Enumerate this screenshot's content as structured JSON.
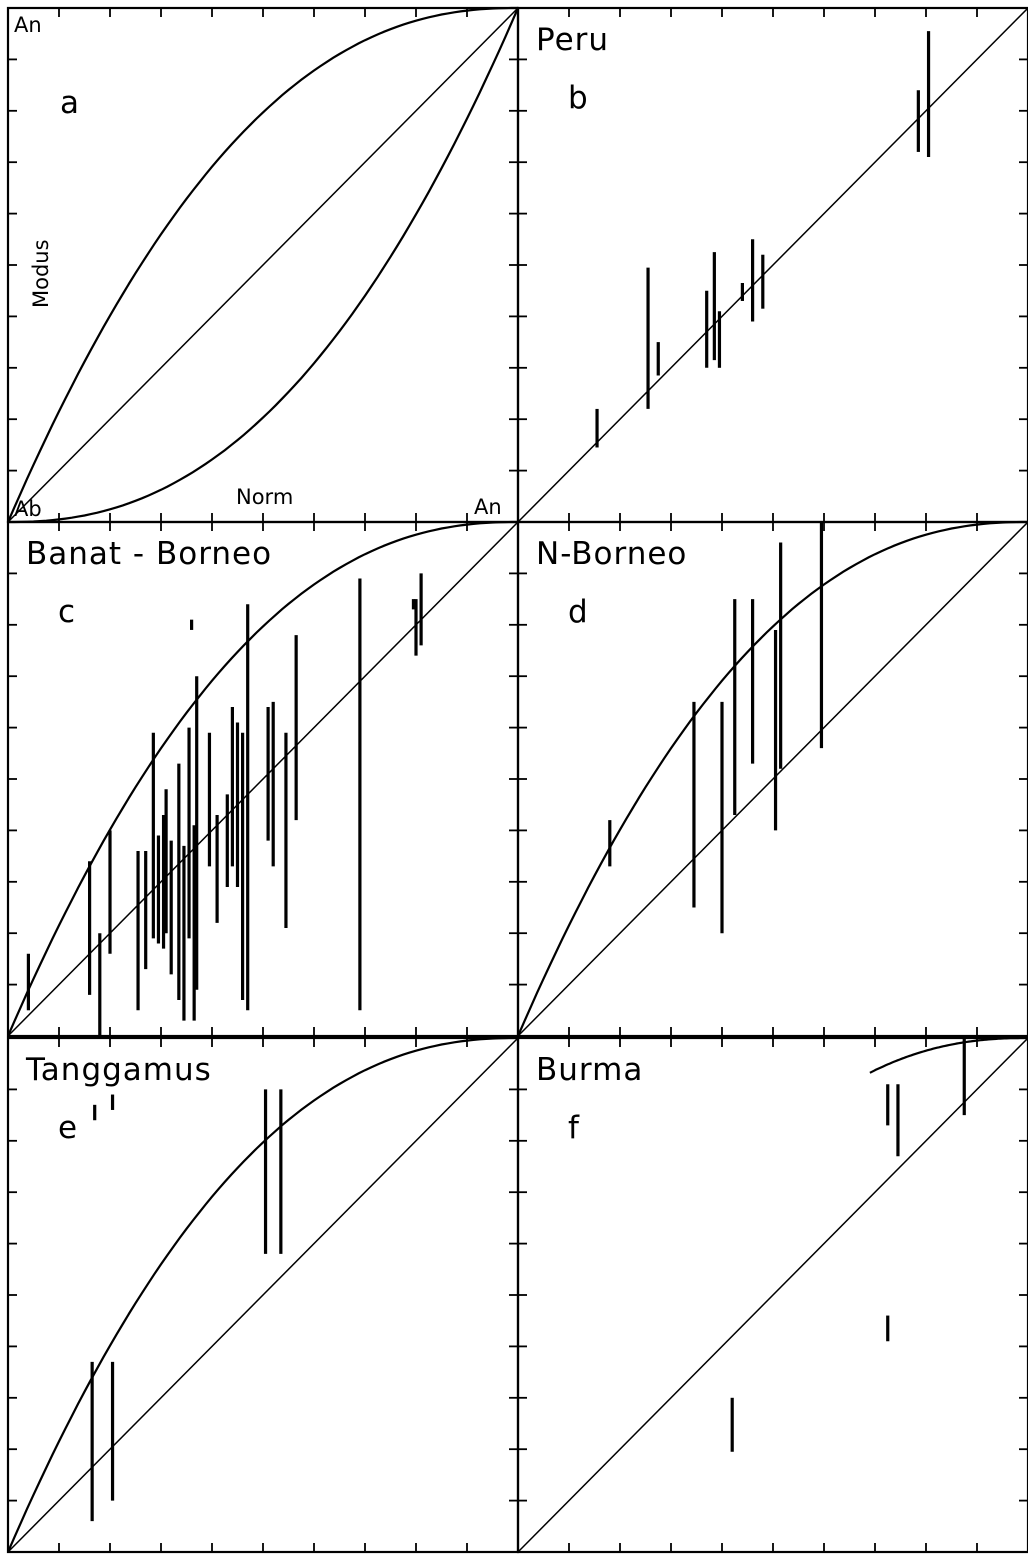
{
  "chart_data": [
    {
      "panel": "a",
      "type": "line",
      "title": "",
      "letter": "a",
      "xlabel": "Norm",
      "ylabel": "Modus",
      "x_start_label": "Ab",
      "x_end_label": "An",
      "y_end_label": "An",
      "xlim": [
        0,
        1
      ],
      "ylim": [
        0,
        1
      ],
      "diagonal": true,
      "upper_curve": true,
      "lower_curve": true,
      "bars": []
    },
    {
      "panel": "b",
      "type": "bar",
      "title": "Peru",
      "letter": "b",
      "xlim": [
        0,
        1
      ],
      "ylim": [
        0,
        1
      ],
      "diagonal": true,
      "upper_curve": false,
      "lower_curve": false,
      "bars": [
        {
          "x": 0.155,
          "y1": 0.145,
          "y2": 0.22
        },
        {
          "x": 0.255,
          "y1": 0.22,
          "y2": 0.495
        },
        {
          "x": 0.275,
          "y1": 0.285,
          "y2": 0.35
        },
        {
          "x": 0.37,
          "y1": 0.3,
          "y2": 0.45
        },
        {
          "x": 0.385,
          "y1": 0.315,
          "y2": 0.525
        },
        {
          "x": 0.395,
          "y1": 0.3,
          "y2": 0.41
        },
        {
          "x": 0.44,
          "y1": 0.43,
          "y2": 0.465
        },
        {
          "x": 0.46,
          "y1": 0.39,
          "y2": 0.55
        },
        {
          "x": 0.48,
          "y1": 0.415,
          "y2": 0.52
        },
        {
          "x": 0.785,
          "y1": 0.72,
          "y2": 0.84
        },
        {
          "x": 0.805,
          "y1": 0.71,
          "y2": 0.955
        }
      ]
    },
    {
      "panel": "c",
      "type": "bar",
      "title": "Banat - Borneo",
      "letter": "c",
      "xlim": [
        0,
        1
      ],
      "ylim": [
        0,
        1
      ],
      "diagonal": true,
      "upper_curve": true,
      "lower_curve": false,
      "bars": [
        {
          "x": 0.04,
          "y1": 0.05,
          "y2": 0.16
        },
        {
          "x": 0.16,
          "y1": 0.08,
          "y2": 0.34
        },
        {
          "x": 0.18,
          "y1": 0.0,
          "y2": 0.2
        },
        {
          "x": 0.2,
          "y1": 0.16,
          "y2": 0.4
        },
        {
          "x": 0.255,
          "y1": 0.05,
          "y2": 0.36
        },
        {
          "x": 0.27,
          "y1": 0.13,
          "y2": 0.36
        },
        {
          "x": 0.285,
          "y1": 0.19,
          "y2": 0.59
        },
        {
          "x": 0.295,
          "y1": 0.18,
          "y2": 0.39
        },
        {
          "x": 0.305,
          "y1": 0.17,
          "y2": 0.43
        },
        {
          "x": 0.31,
          "y1": 0.2,
          "y2": 0.48
        },
        {
          "x": 0.32,
          "y1": 0.12,
          "y2": 0.38
        },
        {
          "x": 0.335,
          "y1": 0.07,
          "y2": 0.53
        },
        {
          "x": 0.345,
          "y1": 0.03,
          "y2": 0.37
        },
        {
          "x": 0.355,
          "y1": 0.19,
          "y2": 0.6
        },
        {
          "x": 0.365,
          "y1": 0.03,
          "y2": 0.41
        },
        {
          "x": 0.37,
          "y1": 0.09,
          "y2": 0.7
        },
        {
          "x": 0.395,
          "y1": 0.33,
          "y2": 0.59
        },
        {
          "x": 0.41,
          "y1": 0.22,
          "y2": 0.43
        },
        {
          "x": 0.43,
          "y1": 0.29,
          "y2": 0.47
        },
        {
          "x": 0.44,
          "y1": 0.33,
          "y2": 0.64
        },
        {
          "x": 0.45,
          "y1": 0.29,
          "y2": 0.61
        },
        {
          "x": 0.46,
          "y1": 0.07,
          "y2": 0.59
        },
        {
          "x": 0.47,
          "y1": 0.05,
          "y2": 0.84
        },
        {
          "x": 0.51,
          "y1": 0.38,
          "y2": 0.64
        },
        {
          "x": 0.52,
          "y1": 0.33,
          "y2": 0.65
        },
        {
          "x": 0.545,
          "y1": 0.21,
          "y2": 0.59
        },
        {
          "x": 0.565,
          "y1": 0.42,
          "y2": 0.78
        },
        {
          "x": 0.69,
          "y1": 0.05,
          "y2": 0.89
        },
        {
          "x": 0.795,
          "y1": 0.83,
          "y2": 0.85
        },
        {
          "x": 0.8,
          "y1": 0.74,
          "y2": 0.85
        },
        {
          "x": 0.81,
          "y1": 0.76,
          "y2": 0.9
        },
        {
          "x": 0.36,
          "y1": 0.79,
          "y2": 0.81
        }
      ]
    },
    {
      "panel": "d",
      "type": "bar",
      "title": "N-Borneo",
      "letter": "d",
      "xlim": [
        0,
        1
      ],
      "ylim": [
        0,
        1
      ],
      "diagonal": true,
      "upper_curve": true,
      "lower_curve": false,
      "bars": [
        {
          "x": 0.18,
          "y1": 0.33,
          "y2": 0.42
        },
        {
          "x": 0.345,
          "y1": 0.25,
          "y2": 0.65
        },
        {
          "x": 0.4,
          "y1": 0.2,
          "y2": 0.65
        },
        {
          "x": 0.425,
          "y1": 0.43,
          "y2": 0.85
        },
        {
          "x": 0.46,
          "y1": 0.53,
          "y2": 0.85
        },
        {
          "x": 0.505,
          "y1": 0.4,
          "y2": 0.79
        },
        {
          "x": 0.515,
          "y1": 0.52,
          "y2": 0.96
        },
        {
          "x": 0.595,
          "y1": 0.56,
          "y2": 1.0
        }
      ]
    },
    {
      "panel": "e",
      "type": "bar",
      "title": "Tanggamus",
      "letter": "e",
      "xlim": [
        0,
        1
      ],
      "ylim": [
        0,
        1
      ],
      "diagonal": true,
      "upper_curve": true,
      "lower_curve": false,
      "bars": [
        {
          "x": 0.165,
          "y1": 0.06,
          "y2": 0.37
        },
        {
          "x": 0.205,
          "y1": 0.1,
          "y2": 0.37
        },
        {
          "x": 0.505,
          "y1": 0.58,
          "y2": 0.9
        },
        {
          "x": 0.535,
          "y1": 0.58,
          "y2": 0.9
        },
        {
          "x": 0.17,
          "y1": 0.84,
          "y2": 0.87
        },
        {
          "x": 0.205,
          "y1": 0.86,
          "y2": 0.89
        }
      ]
    },
    {
      "panel": "f",
      "type": "bar",
      "title": "Burma",
      "letter": "f",
      "xlim": [
        0,
        1
      ],
      "ylim": [
        0,
        1
      ],
      "diagonal": true,
      "upper_curve": false,
      "lower_curve": false,
      "partial_curve": true,
      "bars": [
        {
          "x": 0.42,
          "y1": 0.195,
          "y2": 0.3
        },
        {
          "x": 0.725,
          "y1": 0.83,
          "y2": 0.91
        },
        {
          "x": 0.745,
          "y1": 0.77,
          "y2": 0.91
        },
        {
          "x": 0.725,
          "y1": 0.41,
          "y2": 0.46
        },
        {
          "x": 0.875,
          "y1": 0.85,
          "y2": 1.0
        }
      ]
    }
  ]
}
